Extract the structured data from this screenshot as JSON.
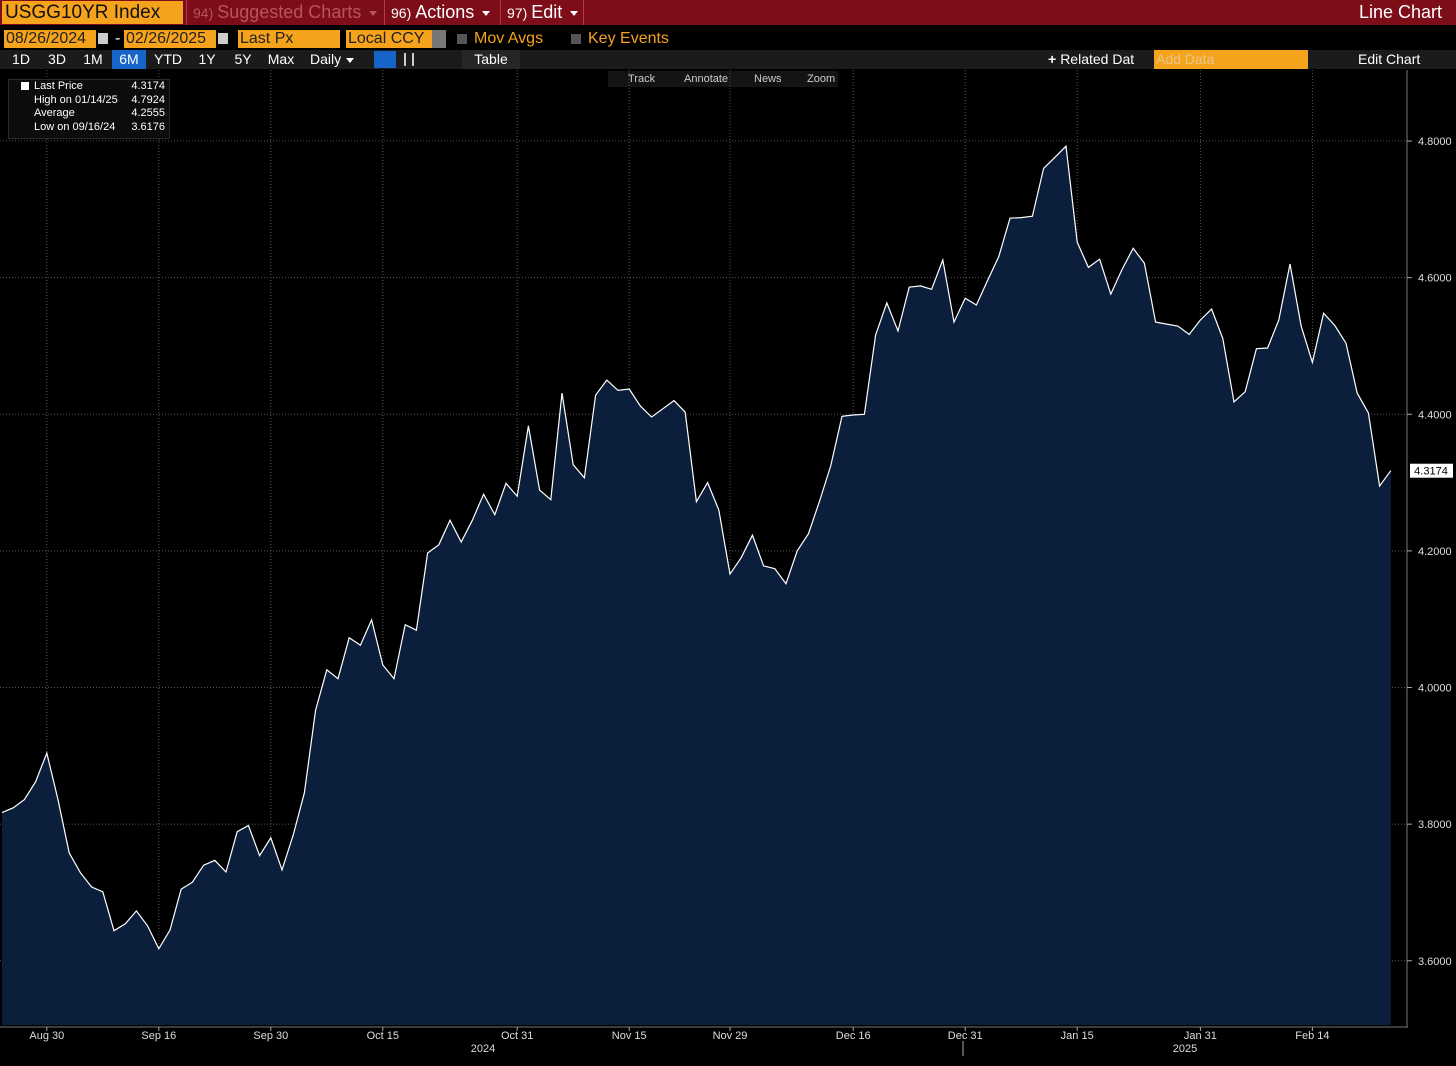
{
  "header": {
    "ticker": "USGG10YR Index",
    "menus": [
      {
        "number": "94)",
        "label": "Suggested Charts"
      },
      {
        "number": "96)",
        "label": "Actions"
      },
      {
        "number": "97)",
        "label": "Edit"
      }
    ],
    "title": "Line Chart"
  },
  "controls": {
    "start_date": "08/26/2024",
    "separator": "-",
    "end_date": "02/26/2025",
    "field": "Last Px",
    "currency": "Local CCY",
    "mov_avgs": "Mov Avgs",
    "key_events": "Key Events"
  },
  "toolbar": {
    "periods": [
      "1D",
      "3D",
      "1M",
      "6M",
      "YTD",
      "1Y",
      "5Y",
      "Max"
    ],
    "frequency": "Daily",
    "table": "Table",
    "related": "Related Dat",
    "add_data": "Add Data",
    "edit_chart": "Edit Chart"
  },
  "chart_tools": [
    "Track",
    "Annotate",
    "News",
    "Zoom"
  ],
  "legend": [
    {
      "label": "Last Price",
      "value": 4.3174
    },
    {
      "label": "High on 01/14/25",
      "value": 4.7924
    },
    {
      "label": "Average",
      "value": 4.2555
    },
    {
      "label": "Low on 09/16/24",
      "value": 3.6176
    }
  ],
  "chart_data": {
    "type": "area",
    "x": [
      "2024-08-26",
      "2024-08-27",
      "2024-08-28",
      "2024-08-29",
      "2024-08-30",
      "2024-09-03",
      "2024-09-04",
      "2024-09-05",
      "2024-09-06",
      "2024-09-09",
      "2024-09-10",
      "2024-09-11",
      "2024-09-12",
      "2024-09-13",
      "2024-09-16",
      "2024-09-17",
      "2024-09-18",
      "2024-09-19",
      "2024-09-20",
      "2024-09-23",
      "2024-09-24",
      "2024-09-25",
      "2024-09-26",
      "2024-09-27",
      "2024-09-30",
      "2024-10-01",
      "2024-10-02",
      "2024-10-03",
      "2024-10-04",
      "2024-10-07",
      "2024-10-08",
      "2024-10-09",
      "2024-10-10",
      "2024-10-11",
      "2024-10-15",
      "2024-10-16",
      "2024-10-17",
      "2024-10-18",
      "2024-10-21",
      "2024-10-22",
      "2024-10-23",
      "2024-10-24",
      "2024-10-25",
      "2024-10-28",
      "2024-10-29",
      "2024-10-30",
      "2024-10-31",
      "2024-11-01",
      "2024-11-04",
      "2024-11-05",
      "2024-11-06",
      "2024-11-07",
      "2024-11-08",
      "2024-11-12",
      "2024-11-13",
      "2024-11-14",
      "2024-11-15",
      "2024-11-18",
      "2024-11-19",
      "2024-11-20",
      "2024-11-21",
      "2024-11-22",
      "2024-11-25",
      "2024-11-26",
      "2024-11-27",
      "2024-11-29",
      "2024-12-02",
      "2024-12-03",
      "2024-12-04",
      "2024-12-05",
      "2024-12-06",
      "2024-12-09",
      "2024-12-10",
      "2024-12-11",
      "2024-12-12",
      "2024-12-13",
      "2024-12-16",
      "2024-12-17",
      "2024-12-18",
      "2024-12-19",
      "2024-12-20",
      "2024-12-23",
      "2024-12-24",
      "2024-12-26",
      "2024-12-27",
      "2024-12-30",
      "2024-12-31",
      "2025-01-02",
      "2025-01-03",
      "2025-01-06",
      "2025-01-07",
      "2025-01-08",
      "2025-01-09",
      "2025-01-10",
      "2025-01-13",
      "2025-01-14",
      "2025-01-15",
      "2025-01-16",
      "2025-01-17",
      "2025-01-21",
      "2025-01-22",
      "2025-01-23",
      "2025-01-24",
      "2025-01-27",
      "2025-01-28",
      "2025-01-29",
      "2025-01-30",
      "2025-01-31",
      "2025-02-03",
      "2025-02-04",
      "2025-02-05",
      "2025-02-06",
      "2025-02-07",
      "2025-02-10",
      "2025-02-11",
      "2025-02-12",
      "2025-02-13",
      "2025-02-14",
      "2025-02-18",
      "2025-02-19",
      "2025-02-20",
      "2025-02-21",
      "2025-02-24",
      "2025-02-25",
      "2025-02-26"
    ],
    "series": [
      {
        "name": "Last Price",
        "color": "#ffffff",
        "fill": "#0b1f3d",
        "values": [
          3.817,
          3.824,
          3.836,
          3.862,
          3.904,
          3.836,
          3.758,
          3.729,
          3.708,
          3.701,
          3.644,
          3.654,
          3.673,
          3.651,
          3.6176,
          3.645,
          3.705,
          3.715,
          3.74,
          3.747,
          3.73,
          3.789,
          3.798,
          3.754,
          3.78,
          3.733,
          3.784,
          3.846,
          3.967,
          4.026,
          4.013,
          4.073,
          4.062,
          4.099,
          4.033,
          4.013,
          4.092,
          4.084,
          4.197,
          4.209,
          4.245,
          4.213,
          4.245,
          4.283,
          4.253,
          4.299,
          4.28,
          4.383,
          4.289,
          4.275,
          4.431,
          4.326,
          4.307,
          4.428,
          4.45,
          4.435,
          4.437,
          4.412,
          4.396,
          4.408,
          4.42,
          4.403,
          4.272,
          4.3,
          4.26,
          4.166,
          4.19,
          4.223,
          4.178,
          4.174,
          4.152,
          4.2,
          4.225,
          4.273,
          4.325,
          4.397,
          4.399,
          4.4,
          4.516,
          4.563,
          4.522,
          4.586,
          4.588,
          4.583,
          4.626,
          4.535,
          4.57,
          4.56,
          4.596,
          4.631,
          4.687,
          4.688,
          4.69,
          4.76,
          4.776,
          4.7924,
          4.652,
          4.615,
          4.627,
          4.576,
          4.612,
          4.643,
          4.621,
          4.535,
          4.532,
          4.529,
          4.517,
          4.538,
          4.554,
          4.511,
          4.418,
          4.433,
          4.496,
          4.497,
          4.538,
          4.62,
          4.529,
          4.476,
          4.548,
          4.53,
          4.504,
          4.431,
          4.402,
          4.295,
          4.3174
        ]
      }
    ],
    "ylim": [
      3.506,
      4.904
    ],
    "yticks": [
      {
        "value": 3.6,
        "label": "3.6000"
      },
      {
        "value": 3.8,
        "label": "3.8000"
      },
      {
        "value": 4.0,
        "label": "4.0000"
      },
      {
        "value": 4.2,
        "label": "4.2000"
      },
      {
        "value": 4.4,
        "label": "4.4000"
      },
      {
        "value": 4.6,
        "label": "4.6000"
      },
      {
        "value": 4.8,
        "label": "4.8000"
      }
    ],
    "xticks": [
      {
        "value": "2024-08-30",
        "label": "Aug 30"
      },
      {
        "value": "2024-09-16",
        "label": "Sep 16"
      },
      {
        "value": "2024-09-30",
        "label": "Sep 30"
      },
      {
        "value": "2024-10-15",
        "label": "Oct 15"
      },
      {
        "value": "2024-10-31",
        "label": "Oct 31"
      },
      {
        "value": "2024-11-15",
        "label": "Nov 15"
      },
      {
        "value": "2024-11-29",
        "label": "Nov 29"
      },
      {
        "value": "2024-12-16",
        "label": "Dec 16"
      },
      {
        "value": "2024-12-31",
        "label": "Dec 31"
      },
      {
        "value": "2025-01-15",
        "label": "Jan 15"
      },
      {
        "value": "2025-01-31",
        "label": "Jan 31"
      },
      {
        "value": "2025-02-14",
        "label": "Feb 14"
      }
    ],
    "x_year_labels": [
      "2024",
      "2025"
    ],
    "grid": true
  }
}
